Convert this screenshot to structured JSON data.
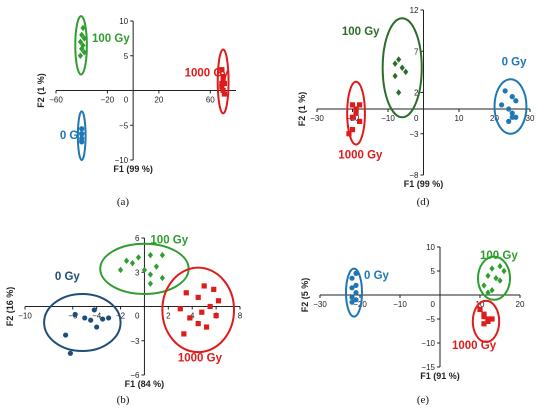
{
  "colors": {
    "green": "#2e9e2e",
    "red": "#e01b1b",
    "blue": "#1f77b4",
    "darkgreen": "#2a6e2a",
    "axis": "#222222"
  },
  "chart_data": [
    {
      "type": "scatter",
      "caption": "(a)",
      "xlabel": "F1 (99 %)",
      "ylabel": "F2 (1 %)",
      "xlim": [
        -60,
        80
      ],
      "ylim": [
        -10,
        10
      ],
      "xticks": [
        -60,
        -20,
        20,
        60
      ],
      "yticks": [
        10,
        5,
        0,
        -5,
        -10
      ],
      "groups": [
        {
          "label": "100 Gy",
          "color": "green",
          "marker": "diamond",
          "ellipse": {
            "cx": -40.5,
            "cy": 6.5,
            "rx": 4.5,
            "ry": 4.2
          },
          "points": [
            [
              -39,
              9
            ],
            [
              -40,
              8
            ],
            [
              -38,
              7.5
            ],
            [
              -41,
              7
            ],
            [
              -39,
              6.5
            ],
            [
              -40,
              6
            ],
            [
              -41,
              5
            ],
            [
              -38,
              5.5
            ]
          ],
          "label_at": [
            -32,
            7
          ]
        },
        {
          "label": "1000 Gy",
          "color": "red",
          "marker": "square",
          "ellipse": {
            "cx": 70,
            "cy": 1.3,
            "rx": 4.2,
            "ry": 4.6
          },
          "points": [
            [
              69,
              3
            ],
            [
              70,
              2
            ],
            [
              71,
              1
            ],
            [
              69,
              0.5
            ],
            [
              70,
              0
            ],
            [
              71,
              -0.5
            ],
            [
              69,
              1
            ],
            [
              70,
              1.5
            ]
          ],
          "label_at": [
            40,
            2
          ]
        },
        {
          "label": "0 Gy",
          "color": "blue",
          "marker": "circle",
          "ellipse": {
            "cx": -40,
            "cy": -6.5,
            "rx": 3,
            "ry": 3.5
          },
          "points": [
            [
              -40,
              -5.5
            ],
            [
              -40,
              -6.2
            ],
            [
              -40,
              -6.9
            ],
            [
              -40,
              -7.4
            ]
          ],
          "label_at": [
            -57,
            -7
          ]
        }
      ]
    },
    {
      "type": "scatter",
      "caption": "(d)",
      "xlabel": "F1 (99 %)",
      "ylabel": "F2 (1 %)",
      "xlim": [
        -30,
        30
      ],
      "ylim": [
        -8,
        12
      ],
      "xticks": [
        -30,
        -20,
        -10,
        0,
        10,
        20,
        30
      ],
      "yticks": [
        12,
        7,
        2,
        -3,
        -8
      ],
      "groups": [
        {
          "label": "100 Gy",
          "color": "darkgreen",
          "marker": "diamond",
          "ellipse": {
            "cx": -6,
            "cy": 5,
            "rx": 5.5,
            "ry": 6
          },
          "points": [
            [
              -7,
              6
            ],
            [
              -8,
              5.5
            ],
            [
              -6,
              5
            ],
            [
              -5,
              4.5
            ],
            [
              -8,
              4
            ],
            [
              -7,
              2
            ]
          ],
          "label_at": [
            -23,
            9
          ]
        },
        {
          "label": "1000 Gy",
          "color": "red",
          "marker": "square",
          "ellipse": {
            "cx": -19,
            "cy": -0.5,
            "rx": 2.5,
            "ry": 3.8
          },
          "points": [
            [
              -18,
              0.5
            ],
            [
              -19,
              0
            ],
            [
              -20,
              0.5
            ],
            [
              -19,
              -0.5
            ],
            [
              -20,
              -1
            ],
            [
              -18,
              -1.5
            ],
            [
              -20,
              -2.5
            ],
            [
              -21,
              -3
            ]
          ],
          "label_at": [
            -24,
            -6
          ]
        },
        {
          "label": "0 Gy",
          "color": "blue",
          "marker": "circle",
          "ellipse": {
            "cx": 24.5,
            "cy": 0.3,
            "rx": 4.5,
            "ry": 3.3
          },
          "points": [
            [
              23,
              2.2
            ],
            [
              25,
              1.5
            ],
            [
              26,
              1
            ],
            [
              22,
              0.5
            ],
            [
              24,
              0
            ],
            [
              25,
              -0.5
            ],
            [
              26,
              -1
            ],
            [
              24,
              -1.5
            ],
            [
              25,
              -1
            ]
          ],
          "label_at": [
            22,
            5.3
          ]
        }
      ]
    },
    {
      "type": "scatter",
      "caption": "(b)",
      "xlabel": "F1 (84 %)",
      "ylabel": "F2 (16 %)",
      "xlim": [
        -10,
        8
      ],
      "ylim": [
        -6,
        6
      ],
      "xticks": [
        -10,
        -6,
        -4,
        -2,
        0,
        2,
        4,
        6,
        8
      ],
      "yticks": [
        6,
        3,
        0,
        -3,
        -6
      ],
      "groups": [
        {
          "label": "100 Gy",
          "color": "green",
          "marker": "diamond",
          "ellipse": {
            "cx": 0,
            "cy": 3.3,
            "rx": 3.7,
            "ry": 2.2
          },
          "points": [
            [
              -1.5,
              4
            ],
            [
              -0.5,
              4.3
            ],
            [
              0.5,
              4.5
            ],
            [
              1.5,
              4.5
            ],
            [
              -1,
              3.8
            ],
            [
              0,
              3.2
            ],
            [
              1,
              3.5
            ],
            [
              -2,
              3.2
            ],
            [
              0.5,
              2.8
            ],
            [
              1.5,
              2.5
            ],
            [
              0.5,
              2
            ]
          ],
          "label_at": [
            0.5,
            5.5
          ]
        },
        {
          "label": "1000 Gy",
          "color": "red",
          "marker": "square",
          "ellipse": {
            "cx": 4.5,
            "cy": -0.3,
            "rx": 3,
            "ry": 3.7
          },
          "points": [
            [
              5,
              1.8
            ],
            [
              5.8,
              1.5
            ],
            [
              3.5,
              1.2
            ],
            [
              4.5,
              0.8
            ],
            [
              6.2,
              0.5
            ],
            [
              5.5,
              0
            ],
            [
              3,
              -0.2
            ],
            [
              4.8,
              -0.5
            ],
            [
              6,
              -0.8
            ],
            [
              3.8,
              -1
            ],
            [
              4.5,
              -1.5
            ],
            [
              3.3,
              -2.4
            ],
            [
              5.2,
              -1.8
            ]
          ],
          "label_at": [
            2.8,
            -4.8
          ]
        },
        {
          "label": "0 Gy",
          "color": "navy",
          "marker": "circle",
          "ellipse": {
            "cx": -5.2,
            "cy": -1.4,
            "rx": 3.2,
            "ry": 2.5
          },
          "points": [
            [
              -5.8,
              -0.7
            ],
            [
              -4.2,
              -0.3
            ],
            [
              -5,
              -1
            ],
            [
              -4.5,
              -1.2
            ],
            [
              -3.5,
              -1.1
            ],
            [
              -3,
              -1
            ],
            [
              -4,
              -1.8
            ],
            [
              -6.6,
              -2.5
            ],
            [
              -6.2,
              -4.1
            ]
          ],
          "label_at": [
            -7.5,
            2.3
          ]
        }
      ]
    },
    {
      "type": "scatter",
      "caption": "(e)",
      "xlabel": "F1 (91 %)",
      "ylabel": "F2 (5 %)",
      "xlim": [
        -30,
        20
      ],
      "ylim": [
        -15,
        10
      ],
      "xticks": [
        -30,
        -20,
        -10,
        0,
        10,
        20
      ],
      "yticks": [
        10,
        5,
        0,
        -5,
        -10,
        -15
      ],
      "groups": [
        {
          "label": "100 Gy",
          "color": "green",
          "marker": "diamond",
          "ellipse": {
            "cx": 13.5,
            "cy": 3.5,
            "rx": 4,
            "ry": 4.5
          },
          "points": [
            [
              15,
              6
            ],
            [
              13,
              5.5
            ],
            [
              16,
              5
            ],
            [
              12,
              4
            ],
            [
              14,
              3.5
            ],
            [
              15,
              3
            ],
            [
              11,
              2
            ],
            [
              13,
              1
            ],
            [
              12,
              0.5
            ]
          ],
          "label_at": [
            10,
            7.5
          ]
        },
        {
          "label": "1000 Gy",
          "color": "red",
          "marker": "square",
          "ellipse": {
            "cx": 11.5,
            "cy": -5.5,
            "rx": 3.3,
            "ry": 4.3
          },
          "points": [
            [
              10,
              -3
            ],
            [
              11,
              -4
            ],
            [
              11,
              -4.5
            ],
            [
              12,
              -5
            ],
            [
              12,
              -5.5
            ],
            [
              13,
              -5
            ],
            [
              11,
              -6
            ]
          ],
          "label_at": [
            3,
            -11.3
          ]
        },
        {
          "label": "0 Gy",
          "color": "blue",
          "marker": "circle",
          "ellipse": {
            "cx": -21.5,
            "cy": 0.5,
            "rx": 2,
            "ry": 5
          },
          "points": [
            [
              -21,
              4.5
            ],
            [
              -22,
              3.5
            ],
            [
              -21,
              2
            ],
            [
              -22,
              1.5
            ],
            [
              -21,
              0.5
            ],
            [
              -22,
              -0.5
            ],
            [
              -21,
              -1
            ],
            [
              -22,
              -1.5
            ]
          ],
          "label_at": [
            -19,
            3.3
          ]
        }
      ]
    }
  ]
}
